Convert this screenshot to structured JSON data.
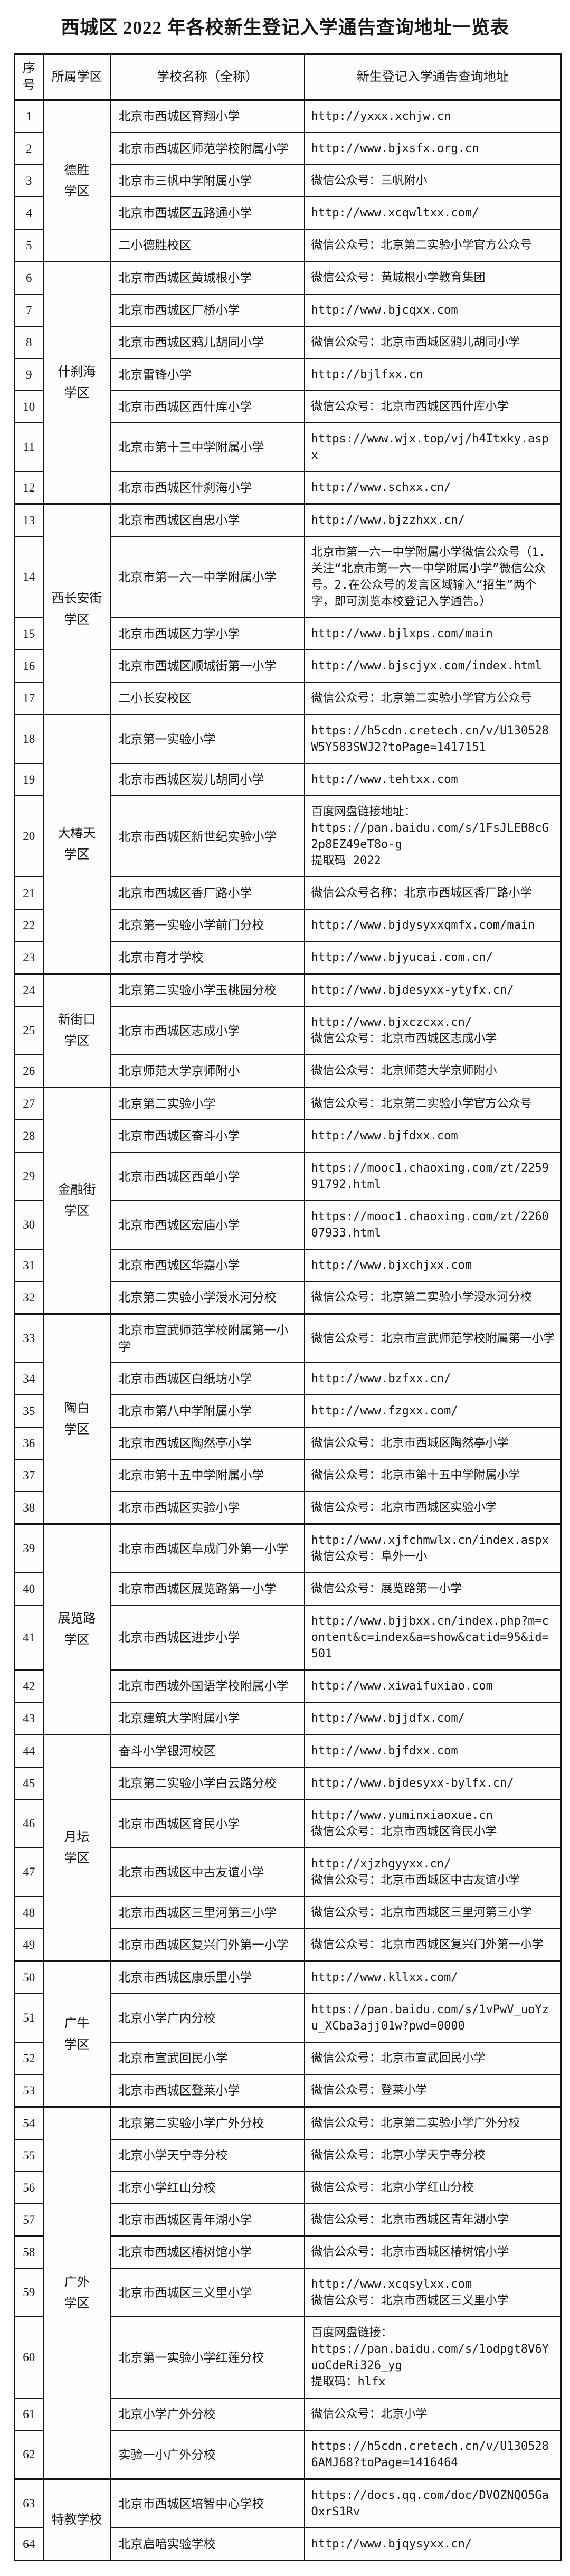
{
  "title": "西城区 2022 年各校新生登记入学通告查询地址一览表",
  "table": {
    "headers": {
      "index": "序号",
      "district": "所属学区",
      "school": "学校名称（全称）",
      "address": "新生登记入学通告查询地址"
    },
    "districts": [
      {
        "name": "德胜\n学区",
        "rows": [
          {
            "no": "1",
            "school": "北京市西城区育翔小学",
            "addr": [
              "http://yxxx.xchjw.cn"
            ]
          },
          {
            "no": "2",
            "school": "北京市西城区师范学校附属小学",
            "addr": [
              "http://www.bjxsfx.org.cn"
            ]
          },
          {
            "no": "3",
            "school": "北京市三帆中学附属小学",
            "addr": [
              "微信公众号：三帆附小"
            ]
          },
          {
            "no": "4",
            "school": "北京市西城区五路通小学",
            "addr": [
              "http://www.xcqwltxx.com/"
            ]
          },
          {
            "no": "5",
            "school": "二小德胜校区",
            "addr": [
              "微信公众号：北京第二实验小学官方公众号"
            ]
          }
        ]
      },
      {
        "name": "什刹海\n学区",
        "rows": [
          {
            "no": "6",
            "school": "北京市西城区黄城根小学",
            "addr": [
              "微信公众号：黄城根小学教育集团"
            ]
          },
          {
            "no": "7",
            "school": "北京市西城区厂桥小学",
            "addr": [
              "http://www.bjcqxx.com"
            ]
          },
          {
            "no": "8",
            "school": "北京市西城区鸦儿胡同小学",
            "addr": [
              "微信公众号：北京市西城区鸦儿胡同小学"
            ]
          },
          {
            "no": "9",
            "school": "北京雷锋小学",
            "addr": [
              "http://bjlfxx.cn"
            ]
          },
          {
            "no": "10",
            "school": "北京市西城区西什库小学",
            "addr": [
              "微信公众号：北京市西城区西什库小学"
            ]
          },
          {
            "no": "11",
            "school": "北京市第十三中学附属小学",
            "addr": [
              "https://www.wjx.top/vj/h4Itxky.aspx"
            ]
          },
          {
            "no": "12",
            "school": "北京市西城区什刹海小学",
            "addr": [
              "http://www.schxx.cn/"
            ]
          }
        ]
      },
      {
        "name": "西长安街\n学区",
        "rows": [
          {
            "no": "13",
            "school": "北京市西城区自忠小学",
            "addr": [
              "http://www.bjzzhxx.cn/"
            ]
          },
          {
            "no": "14",
            "school": "北京市第一六一中学附属小学",
            "addr": [
              "北京市第一六一中学附属小学微信公众号（1.关注“北京市第一六一中学附属小学”微信公众号。2.在公众号的发言区域输入“招生”两个字，即可浏览本校登记入学通告。）"
            ]
          },
          {
            "no": "15",
            "school": "北京市西城区力学小学",
            "addr": [
              "http://www.bjlxps.com/main"
            ]
          },
          {
            "no": "16",
            "school": "北京市西城区顺城街第一小学",
            "addr": [
              "http://www.bjscjyx.com/index.html"
            ]
          },
          {
            "no": "17",
            "school": "二小长安校区",
            "addr": [
              "微信公众号：北京第二实验小学官方公众号"
            ]
          }
        ]
      },
      {
        "name": "大椿天\n学区",
        "rows": [
          {
            "no": "18",
            "school": "北京第一实验小学",
            "addr": [
              "https://h5cdn.cretech.cn/v/U130528W5Y583SWJ2?toPage=1417151"
            ]
          },
          {
            "no": "19",
            "school": "北京市西城区炭儿胡同小学",
            "addr": [
              "http://www.tehtxx.com"
            ]
          },
          {
            "no": "20",
            "school": "北京市西城区新世纪实验小学",
            "addr": [
              "百度网盘链接地址：",
              "https://pan.baidu.com/s/1FsJLEB8cG2p8EZ49eT8o-g",
              "提取码 2022"
            ]
          },
          {
            "no": "21",
            "school": "北京市西城区香厂路小学",
            "addr": [
              "微信公众号名称：北京市西城区香厂路小学"
            ]
          },
          {
            "no": "22",
            "school": "北京第一实验小学前门分校",
            "addr": [
              "http://www.bjdysyxxqmfx.com/main"
            ]
          },
          {
            "no": "23",
            "school": "北京市育才学校",
            "addr": [
              "http://www.bjyucai.com.cn/"
            ]
          }
        ]
      },
      {
        "name": "新街口\n学区",
        "rows": [
          {
            "no": "24",
            "school": "北京第二实验小学玉桃园分校",
            "addr": [
              "http://www.bjdesyxx-ytyfx.cn/"
            ]
          },
          {
            "no": "25",
            "school": "北京市西城区志成小学",
            "addr": [
              "http://www.bjxczcxx.cn/",
              "微信公众号：北京市西城区志成小学"
            ]
          },
          {
            "no": "26",
            "school": "北京师范大学京师附小",
            "addr": [
              "微信公众号：北京师范大学京师附小"
            ]
          }
        ]
      },
      {
        "name": "金融街\n学区",
        "rows": [
          {
            "no": "27",
            "school": "北京第二实验小学",
            "addr": [
              "微信公众号：北京第二实验小学官方公众号"
            ]
          },
          {
            "no": "28",
            "school": "北京市西城区奋斗小学",
            "addr": [
              "http://www.bjfdxx.com"
            ]
          },
          {
            "no": "29",
            "school": "北京市西城区西单小学",
            "addr": [
              "https://mooc1.chaoxing.com/zt/225991792.html"
            ]
          },
          {
            "no": "30",
            "school": "北京市西城区宏庙小学",
            "addr": [
              "https://mooc1.chaoxing.com/zt/226007933.html"
            ]
          },
          {
            "no": "31",
            "school": "北京市西城区华嘉小学",
            "addr": [
              "http://www.bjxchjxx.com"
            ]
          },
          {
            "no": "32",
            "school": "北京第二实验小学涭水河分校",
            "addr": [
              "微信公众号：北京第二实验小学涭水河分校"
            ]
          }
        ]
      },
      {
        "name": "陶白\n学区",
        "rows": [
          {
            "no": "33",
            "school": "北京市宣武师范学校附属第一小学",
            "addr": [
              "微信公众号：北京市宣武师范学校附属第一小学"
            ]
          },
          {
            "no": "34",
            "school": "北京市西城区白纸坊小学",
            "addr": [
              "http://www.bzfxx.cn/"
            ]
          },
          {
            "no": "35",
            "school": "北京市第八中学附属小学",
            "addr": [
              "http://www.fzgxx.com/"
            ]
          },
          {
            "no": "36",
            "school": "北京市西城区陶然亭小学",
            "addr": [
              "微信公众号：北京市西城区陶然亭小学"
            ]
          },
          {
            "no": "37",
            "school": "北京市第十五中学附属小学",
            "addr": [
              "微信公众号：北京市第十五中学附属小学"
            ]
          },
          {
            "no": "38",
            "school": "北京市西城区实验小学",
            "addr": [
              "微信公众号：北京市西城区实验小学"
            ]
          }
        ]
      },
      {
        "name": "展览路\n学区",
        "rows": [
          {
            "no": "39",
            "school": "北京市西城区阜成门外第一小学",
            "addr": [
              "http://www.xjfchmwlx.cn/index.aspx",
              "微信公众号：阜外一小"
            ]
          },
          {
            "no": "40",
            "school": "北京市西城区展览路第一小学",
            "addr": [
              "微信公众号：展览路第一小学"
            ]
          },
          {
            "no": "41",
            "school": "北京市西城区进步小学",
            "addr": [
              "http://www.bjjbxx.cn/index.php?m=content&c=index&a=show&catid=95&id=501"
            ]
          },
          {
            "no": "42",
            "school": "北京市西城外国语学校附属小学",
            "addr": [
              "http://www.xiwaifuxiao.com"
            ]
          },
          {
            "no": "43",
            "school": "北京建筑大学附属小学",
            "addr": [
              "http://www.bjjdfx.com/"
            ]
          }
        ]
      },
      {
        "name": "月坛\n学区",
        "rows": [
          {
            "no": "44",
            "school": "奋斗小学银河校区",
            "addr": [
              "http://www.bjfdxx.com"
            ]
          },
          {
            "no": "45",
            "school": "北京第二实验小学白云路分校",
            "addr": [
              "http://www.bjdesyxx-bylfx.cn/"
            ]
          },
          {
            "no": "46",
            "school": "北京市西城区育民小学",
            "addr": [
              "http://www.yuminxiaoxue.cn",
              "微信公众号：北京市西城区育民小学"
            ]
          },
          {
            "no": "47",
            "school": "北京市西城区中古友谊小学",
            "addr": [
              "http://xjzhgyyxx.cn/",
              "微信公众号：北京市西城区中古友谊小学"
            ]
          },
          {
            "no": "48",
            "school": "北京市西城区三里河第三小学",
            "addr": [
              "微信公众号：北京市西城区三里河第三小学"
            ]
          },
          {
            "no": "49",
            "school": "北京市西城区复兴门外第一小学",
            "addr": [
              "微信公众号：北京市西城区复兴门外第一小学"
            ]
          }
        ]
      },
      {
        "name": "广牛\n学区",
        "rows": [
          {
            "no": "50",
            "school": "北京市西城区康乐里小学",
            "addr": [
              "http://www.kllxx.com/"
            ]
          },
          {
            "no": "51",
            "school": "北京小学广内分校",
            "addr": [
              "https://pan.baidu.com/s/1vPwV_uoYzu_XCba3ajj01w?pwd=0000"
            ]
          },
          {
            "no": "52",
            "school": "北京市宣武回民小学",
            "addr": [
              "微信公众号：北京市宣武回民小学"
            ]
          },
          {
            "no": "53",
            "school": "北京市西城区登莱小学",
            "addr": [
              "微信公众号：登莱小学"
            ]
          }
        ]
      },
      {
        "name": "广外\n学区",
        "rows": [
          {
            "no": "54",
            "school": "北京第二实验小学广外分校",
            "addr": [
              "微信公众号：北京第二实验小学广外分校"
            ]
          },
          {
            "no": "55",
            "school": "北京小学天宁寺分校",
            "addr": [
              "微信公众号：北京小学天宁寺分校"
            ]
          },
          {
            "no": "56",
            "school": "北京小学红山分校",
            "addr": [
              "微信公众号：北京小学红山分校"
            ]
          },
          {
            "no": "57",
            "school": "北京市西城区青年湖小学",
            "addr": [
              "微信公众号：北京市西城区青年湖小学"
            ]
          },
          {
            "no": "58",
            "school": "北京市西城区椿树馆小学",
            "addr": [
              "微信公众号：北京市西城区椿树馆小学"
            ]
          },
          {
            "no": "59",
            "school": "北京市西城区三义里小学",
            "addr": [
              "http://www.xcqsylxx.com",
              "微信公众号：北京市西城区三义里小学"
            ]
          },
          {
            "no": "60",
            "school": "北京第一实验小学红莲分校",
            "addr": [
              "百度网盘链接：",
              "https://pan.baidu.com/s/1odpgt8V6YuoCdeRi326_yg",
              "提取码：hlfx"
            ]
          },
          {
            "no": "61",
            "school": "北京小学广外分校",
            "addr": [
              "微信公众号：北京小学"
            ]
          },
          {
            "no": "62",
            "school": "实验一小广外分校",
            "addr": [
              "https://h5cdn.cretech.cn/v/U1305286AMJ68?toPage=1416464"
            ]
          }
        ]
      },
      {
        "name": "特教学校",
        "rows": [
          {
            "no": "63",
            "school": "北京市西城区培智中心学校",
            "addr": [
              "https://docs.qq.com/doc/DVOZNQO5GaOxrS1Rv"
            ]
          },
          {
            "no": "64",
            "school": "北京启喑实验学校",
            "addr": [
              "http://www.bjqysyxx.cn/"
            ]
          }
        ]
      }
    ]
  }
}
